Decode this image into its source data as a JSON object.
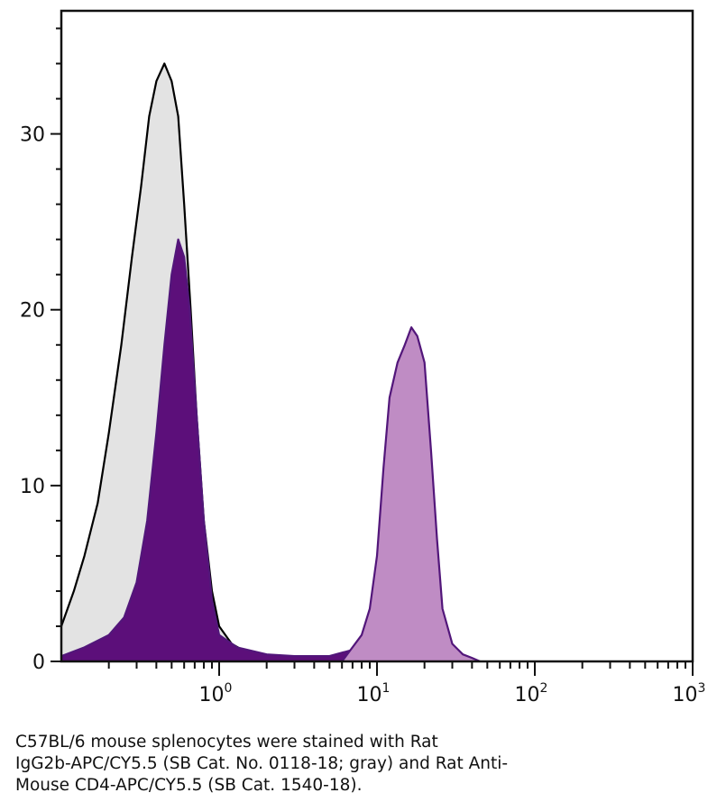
{
  "chart_data": {
    "type": "area",
    "x_scale": "log",
    "xlim": [
      0.1,
      1000
    ],
    "ylim": [
      0,
      37
    ],
    "y_ticks": [
      0,
      10,
      20,
      30
    ],
    "y_tick_labels": [
      "0",
      "10",
      "20",
      "30"
    ],
    "x_ticks": [
      1,
      10,
      100,
      1000
    ],
    "x_tick_labels": [
      {
        "base": "10",
        "exp": "0"
      },
      {
        "base": "10",
        "exp": "1"
      },
      {
        "base": "10",
        "exp": "2"
      },
      {
        "base": "10",
        "exp": "3"
      }
    ],
    "grid": false,
    "series": [
      {
        "fill": "#e3e3e3",
        "stroke": "#000000",
        "points": [
          [
            0.1,
            2
          ],
          [
            0.12,
            4
          ],
          [
            0.14,
            6
          ],
          [
            0.17,
            9
          ],
          [
            0.2,
            13
          ],
          [
            0.24,
            18
          ],
          [
            0.28,
            23
          ],
          [
            0.32,
            27
          ],
          [
            0.36,
            31
          ],
          [
            0.4,
            33
          ],
          [
            0.45,
            34
          ],
          [
            0.5,
            33
          ],
          [
            0.55,
            31
          ],
          [
            0.6,
            26
          ],
          [
            0.66,
            20
          ],
          [
            0.72,
            14
          ],
          [
            0.8,
            8
          ],
          [
            0.9,
            4
          ],
          [
            1.0,
            2
          ],
          [
            1.2,
            1
          ],
          [
            1.5,
            0.5
          ],
          [
            2,
            0.1
          ],
          [
            3,
            0
          ]
        ]
      },
      {
        "fill": "#5c0f7a",
        "stroke": "#52167a",
        "points": [
          [
            0.1,
            0.3
          ],
          [
            0.14,
            0.8
          ],
          [
            0.2,
            1.5
          ],
          [
            0.25,
            2.5
          ],
          [
            0.3,
            4.5
          ],
          [
            0.35,
            8
          ],
          [
            0.4,
            13
          ],
          [
            0.45,
            18
          ],
          [
            0.5,
            22
          ],
          [
            0.55,
            24
          ],
          [
            0.6,
            23
          ],
          [
            0.65,
            20
          ],
          [
            0.72,
            14
          ],
          [
            0.8,
            8
          ],
          [
            0.9,
            3.5
          ],
          [
            1.0,
            1.5
          ],
          [
            1.3,
            0.8
          ],
          [
            2,
            0.4
          ],
          [
            3,
            0.3
          ],
          [
            5,
            0.3
          ],
          [
            8,
            0.8
          ]
        ]
      },
      {
        "fill": "#bf8cc4",
        "stroke": "#52167a",
        "points": [
          [
            6,
            0
          ],
          [
            8,
            1.5
          ],
          [
            9,
            3
          ],
          [
            10,
            6
          ],
          [
            11,
            11
          ],
          [
            12,
            15
          ],
          [
            13.5,
            17
          ],
          [
            15,
            18
          ],
          [
            16.5,
            19
          ],
          [
            18,
            18.5
          ],
          [
            20,
            17
          ],
          [
            22,
            12
          ],
          [
            24,
            7
          ],
          [
            26,
            3
          ],
          [
            30,
            1
          ],
          [
            35,
            0.4
          ],
          [
            40,
            0.2
          ],
          [
            45,
            0
          ]
        ]
      }
    ]
  },
  "caption": [
    "C57BL/6 mouse splenocytes were stained with Rat",
    "IgG2b-APC/CY5.5 (SB Cat. No. 0118-18; gray) and Rat Anti-",
    "Mouse CD4-APC/CY5.5 (SB Cat. 1540-18)."
  ]
}
